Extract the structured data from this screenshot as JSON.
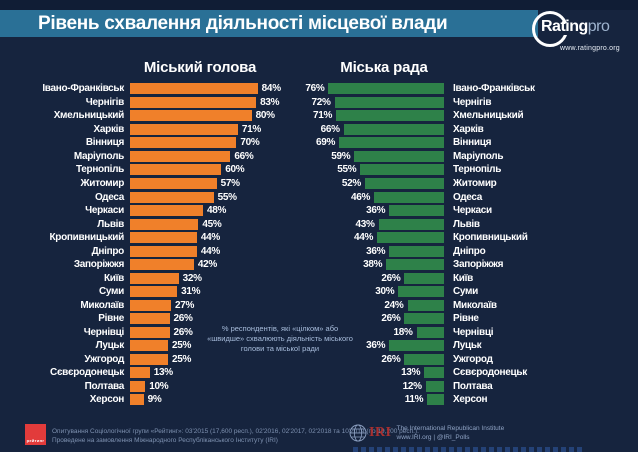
{
  "header": {
    "title": "Рівень схвалення діяльності місцевої влади",
    "brand": {
      "name": "Rating",
      "suffix": "pro",
      "url": "www.ratingpro.org"
    }
  },
  "chart_data": {
    "type": "bar",
    "orientation": "horizontal-mirrored",
    "title_left": "Міський голова",
    "title_right": "Міська рада",
    "categories": [
      "Івано-Франківськ",
      "Чернігів",
      "Хмельницький",
      "Харків",
      "Вінниця",
      "Маріуполь",
      "Тернопіль",
      "Житомир",
      "Одеса",
      "Черкаси",
      "Львів",
      "Кропивницький",
      "Дніпро",
      "Запоріжжя",
      "Київ",
      "Суми",
      "Миколаїв",
      "Рівне",
      "Чернівці",
      "Луцьк",
      "Ужгород",
      "Сєвєродонецьк",
      "Полтава",
      "Херсон"
    ],
    "series": [
      {
        "name": "Міський голова",
        "color": "#f0802a",
        "values": [
          84,
          83,
          80,
          71,
          70,
          66,
          60,
          57,
          55,
          48,
          45,
          44,
          44,
          42,
          32,
          31,
          27,
          26,
          26,
          25,
          25,
          13,
          10,
          9
        ]
      },
      {
        "name": "Міська рада",
        "color": "#2e8149",
        "values": [
          76,
          72,
          71,
          66,
          69,
          59,
          55,
          52,
          46,
          36,
          43,
          44,
          36,
          38,
          26,
          30,
          24,
          26,
          18,
          36,
          26,
          13,
          12,
          11
        ]
      }
    ],
    "value_suffix": "%",
    "xlim": [
      0,
      100
    ],
    "note": "% респондентів, які «цілком» або «швидше» схвалюють діяльність міського голови та міської ради"
  },
  "footer": {
    "source_line1": "Опитування Соціологічної групи «Рейтинг»: 03'2015 (17,600 респ.), 02'2016, 02'2017, 02'2018 та 10'2019 (по 19,200 респ.).",
    "source_line2": "Проведене на замовлення Міжнародного Республіканського Інституту (IRI)",
    "rating_logo_label": "рейтинг",
    "iri_name": "IRI",
    "iri_line1": "The International Republican Institute",
    "iri_line2": "www.IRI.org | @IRI_Polls"
  },
  "colors": {
    "background": "#16243e",
    "top_strip": "#101d35",
    "title_band": "#2a7096",
    "mayor_bar": "#f0802a",
    "council_bar": "#2e8149",
    "note_text": "#a9bedd",
    "footer_text": "#7e91b0"
  }
}
